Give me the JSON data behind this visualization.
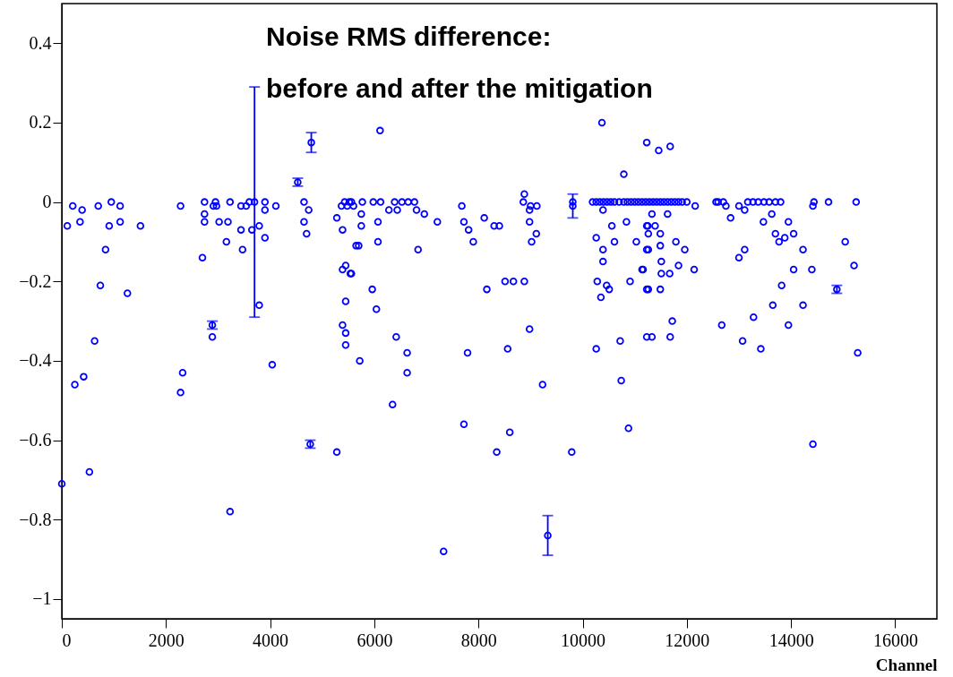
{
  "chart_data": {
    "type": "scatter",
    "title": "Noise RMS difference:\nbefore and after the mitigation",
    "xlabel": "Channel",
    "marker": "circle",
    "grid": false,
    "series": [
      {
        "color": "#0000ff",
        "x": [
          0,
          105,
          210,
          250,
          350,
          390,
          420,
          530,
          630,
          700,
          740,
          840,
          910,
          950,
          1120,
          1120,
          1260,
          1510,
          2280,
          2280,
          2320,
          2700,
          2740,
          2740,
          2740,
          2890,
          2910,
          2950,
          2970,
          3020,
          3160,
          3190,
          3230,
          3230,
          3440,
          3440,
          3470,
          3540,
          3600,
          3650,
          3790,
          3790,
          3900,
          3900,
          3900,
          4040,
          4110,
          4650,
          4650,
          4700,
          4740,
          5280,
          5280,
          5370,
          5390,
          5390,
          5390,
          5430,
          5450,
          5450,
          5450,
          5450,
          5480,
          5520,
          5540,
          5560,
          5560,
          5600,
          5650,
          5700,
          5720,
          5750,
          5750,
          5770,
          5960,
          5980,
          6040,
          6070,
          6070,
          6110,
          6120,
          6280,
          6350,
          6390,
          6420,
          6440,
          6530,
          6630,
          6630,
          6650,
          6770,
          6810,
          6840,
          6960,
          7210,
          7330,
          7680,
          7720,
          7720,
          7790,
          7810,
          7900,
          8110,
          8160,
          8300,
          8350,
          8400,
          8510,
          8560,
          8600,
          8670,
          8860,
          8880,
          8880,
          8980,
          8980,
          8980,
          9000,
          9020,
          9110,
          9120,
          9230,
          9790,
          9810,
          10190,
          10260,
          10260,
          10260,
          10280,
          10330,
          10350,
          10370,
          10390,
          10390,
          10390,
          10400,
          10460,
          10470,
          10510,
          10540,
          10560,
          10610,
          10610,
          10700,
          10720,
          10740,
          10790,
          10790,
          10840,
          10860,
          10880,
          10910,
          10930,
          11000,
          11030,
          11070,
          11140,
          11140,
          11160,
          11210,
          11230,
          11230,
          11230,
          11230,
          11230,
          11250,
          11260,
          11260,
          11260,
          11280,
          11330,
          11330,
          11350,
          11390,
          11420,
          11460,
          11490,
          11490,
          11490,
          11490,
          11510,
          11510,
          11560,
          11630,
          11630,
          11670,
          11680,
          11680,
          11700,
          11720,
          11770,
          11790,
          11840,
          11840,
          11910,
          11960,
          12000,
          12140,
          12160,
          12560,
          12600,
          12670,
          12700,
          12750,
          12840,
          13000,
          13000,
          13070,
          13110,
          13110,
          13170,
          13270,
          13280,
          13370,
          13420,
          13470,
          13480,
          13580,
          13630,
          13650,
          13700,
          13700,
          13770,
          13800,
          13820,
          13880,
          13950,
          13950,
          14050,
          14050,
          14230,
          14230,
          14400,
          14420,
          14420,
          14440,
          14720,
          15040,
          15210,
          15250,
          15280
        ],
        "values": [
          -0.71,
          -0.06,
          -0.01,
          -0.46,
          -0.05,
          -0.02,
          -0.44,
          -0.68,
          -0.35,
          -0.01,
          -0.21,
          -0.12,
          -0.06,
          0.0,
          -0.01,
          -0.05,
          -0.23,
          -0.06,
          -0.01,
          -0.48,
          -0.43,
          -0.14,
          0.0,
          -0.03,
          -0.05,
          -0.34,
          -0.01,
          0.0,
          -0.01,
          -0.05,
          -0.1,
          -0.05,
          0.0,
          -0.78,
          -0.01,
          -0.07,
          -0.12,
          -0.01,
          0.0,
          -0.07,
          -0.06,
          -0.26,
          0.0,
          -0.02,
          -0.09,
          -0.41,
          -0.01,
          0.0,
          -0.05,
          -0.08,
          -0.02,
          -0.04,
          -0.63,
          -0.01,
          -0.07,
          -0.17,
          -0.31,
          0.0,
          -0.16,
          -0.25,
          -0.33,
          -0.36,
          -0.01,
          0.0,
          -0.18,
          0.0,
          -0.18,
          -0.01,
          -0.11,
          -0.11,
          -0.4,
          -0.03,
          -0.06,
          0.0,
          -0.22,
          0.0,
          -0.27,
          -0.05,
          -0.1,
          0.18,
          0.0,
          -0.02,
          -0.51,
          0.0,
          -0.34,
          -0.02,
          0.0,
          -0.38,
          -0.43,
          0.0,
          0.0,
          -0.02,
          -0.12,
          -0.03,
          -0.05,
          -0.88,
          -0.01,
          -0.05,
          -0.56,
          -0.38,
          -0.07,
          -0.1,
          -0.04,
          -0.22,
          -0.06,
          -0.63,
          -0.06,
          -0.2,
          -0.37,
          -0.58,
          -0.2,
          0.0,
          0.02,
          -0.2,
          -0.02,
          -0.05,
          -0.32,
          -0.01,
          -0.1,
          -0.08,
          -0.01,
          -0.46,
          -0.63,
          0.0,
          0.0,
          0.0,
          -0.09,
          -0.37,
          -0.2,
          0.0,
          -0.24,
          0.2,
          -0.02,
          -0.12,
          -0.15,
          0.0,
          -0.21,
          0.0,
          -0.22,
          0.0,
          -0.06,
          0.0,
          -0.1,
          0.0,
          -0.35,
          -0.45,
          0.0,
          0.07,
          -0.05,
          0.0,
          -0.57,
          -0.2,
          0.0,
          0.0,
          -0.1,
          0.0,
          0.0,
          -0.17,
          -0.17,
          0.0,
          0.15,
          -0.06,
          -0.12,
          -0.22,
          -0.34,
          -0.06,
          -0.08,
          -0.12,
          -0.22,
          0.0,
          -0.03,
          -0.34,
          0.0,
          -0.06,
          0.0,
          0.13,
          0.0,
          -0.08,
          -0.11,
          -0.22,
          -0.15,
          -0.18,
          0.0,
          0.0,
          -0.03,
          -0.18,
          0.14,
          -0.34,
          0.0,
          -0.3,
          0.0,
          -0.1,
          0.0,
          -0.16,
          0.0,
          -0.12,
          0.0,
          -0.17,
          -0.01,
          0.0,
          0.0,
          -0.31,
          0.0,
          -0.01,
          -0.04,
          -0.01,
          -0.14,
          -0.35,
          -0.02,
          -0.12,
          0.0,
          0.0,
          -0.29,
          0.0,
          -0.37,
          -0.05,
          0.0,
          0.0,
          -0.03,
          -0.26,
          0.0,
          -0.08,
          -0.1,
          0.0,
          -0.21,
          -0.09,
          -0.05,
          -0.31,
          -0.08,
          -0.17,
          -0.12,
          -0.26,
          -0.17,
          -0.01,
          -0.61,
          0.0,
          0.0,
          -0.1,
          -0.16,
          0.0,
          -0.38
        ]
      },
      {
        "color": "#0000ff",
        "x": [
          2890,
          3700,
          4530,
          4770,
          4790,
          9330,
          9810,
          14880
        ],
        "values": [
          -0.31,
          0.0,
          0.05,
          -0.61,
          0.15,
          -0.84,
          -0.01,
          -0.22
        ],
        "errors": [
          0.01,
          0.29,
          0.01,
          0.01,
          0.025,
          0.05,
          0.03,
          0.01
        ]
      }
    ],
    "xlim": [
      0,
      16800
    ],
    "xticks": [
      0,
      2000,
      4000,
      6000,
      8000,
      10000,
      12000,
      14000,
      16000
    ],
    "ylim": [
      -1.05,
      0.5
    ],
    "yticks": [
      {
        "value": -1,
        "label": "−1"
      },
      {
        "value": -0.8,
        "label": "−0.8"
      },
      {
        "value": -0.6,
        "label": "−0.6"
      },
      {
        "value": -0.4,
        "label": "−0.4"
      },
      {
        "value": -0.2,
        "label": "−0.2"
      },
      0,
      0.2,
      0.4
    ]
  }
}
